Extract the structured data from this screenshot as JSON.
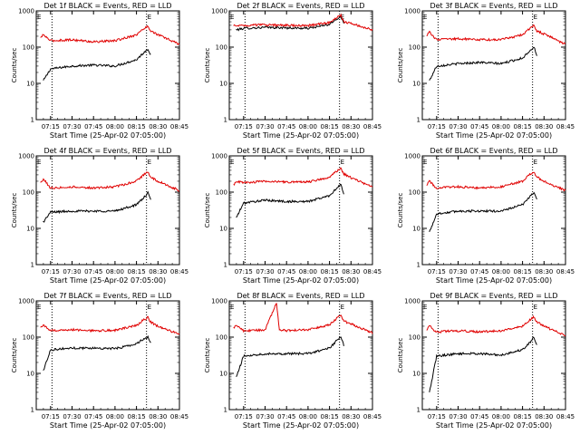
{
  "figure": {
    "colors": {
      "events": "#000000",
      "lld": "#e00000",
      "axes": "#000000",
      "background": "#ffffff"
    }
  },
  "chart_data": [
    {
      "type": "line",
      "title": "Det 1f BLACK = Events, RED = LLD",
      "xlabel": "Start Time (25-Apr-02 07:05:00)",
      "ylabel": "Counts/sec",
      "y_scale": "log",
      "ylim": [
        1,
        1000
      ],
      "xlim": [
        "07:05",
        "08:45"
      ],
      "x_tick_labels": [
        "07:15",
        "07:30",
        "07:45",
        "08:00",
        "08:15",
        "08:30",
        "08:45"
      ],
      "y_tick_labels": [
        "1",
        "10",
        "100",
        "1000"
      ],
      "markers": {
        "dotted_lines_at": [
          "07:16",
          "08:22"
        ],
        "labels": [
          "E",
          "E"
        ]
      },
      "x": [
        "07:08",
        "07:10",
        "07:15",
        "07:30",
        "07:45",
        "08:00",
        "08:15",
        "08:20",
        "08:23",
        "08:25",
        "08:30",
        "08:45"
      ],
      "series": [
        {
          "name": "BLACK = Events",
          "values": [
            null,
            12,
            25,
            30,
            32,
            30,
            45,
            70,
            90,
            60,
            null,
            null
          ]
        },
        {
          "name": "RED = LLD",
          "values": [
            180,
            220,
            150,
            160,
            140,
            150,
            220,
            320,
            380,
            280,
            220,
            120
          ]
        }
      ]
    },
    {
      "type": "line",
      "title": "Det 2f BLACK = Events, RED = LLD",
      "xlabel": "Start Time (25-Apr-02 07:05:00)",
      "ylabel": "Counts/sec",
      "y_scale": "log",
      "ylim": [
        1,
        1000
      ],
      "xlim": [
        "07:05",
        "08:45"
      ],
      "x_tick_labels": [
        "07:15",
        "07:30",
        "07:45",
        "08:00",
        "08:15",
        "08:30",
        "08:45"
      ],
      "y_tick_labels": [
        "1",
        "10",
        "100",
        "1000"
      ],
      "markers": {
        "dotted_lines_at": [
          "07:16",
          "08:22"
        ],
        "labels": [
          "E",
          "E"
        ]
      },
      "x": [
        "07:08",
        "07:10",
        "07:15",
        "07:30",
        "07:45",
        "08:00",
        "08:15",
        "08:20",
        "08:23",
        "08:25",
        "08:30",
        "08:45"
      ],
      "series": [
        {
          "name": "BLACK = Events",
          "values": [
            null,
            300,
            330,
            350,
            340,
            330,
            420,
            600,
            700,
            450,
            null,
            null
          ]
        },
        {
          "name": "RED = LLD",
          "values": [
            380,
            400,
            400,
            410,
            400,
            390,
            480,
            650,
            750,
            500,
            450,
            300
          ]
        }
      ]
    },
    {
      "type": "line",
      "title": "Det 3f BLACK = Events, RED = LLD",
      "xlabel": "Start Time (25-Apr-02 07:05:00)",
      "ylabel": "Counts/sec",
      "y_scale": "log",
      "ylim": [
        1,
        1000
      ],
      "xlim": [
        "07:05",
        "08:45"
      ],
      "x_tick_labels": [
        "07:15",
        "07:30",
        "07:45",
        "08:00",
        "08:15",
        "08:30",
        "08:45"
      ],
      "y_tick_labels": [
        "1",
        "10",
        "100",
        "1000"
      ],
      "markers": {
        "dotted_lines_at": [
          "07:16",
          "08:22"
        ],
        "labels": [
          "E",
          "E"
        ]
      },
      "x": [
        "07:08",
        "07:10",
        "07:15",
        "07:30",
        "07:45",
        "08:00",
        "08:15",
        "08:20",
        "08:23",
        "08:25",
        "08:30",
        "08:45"
      ],
      "series": [
        {
          "name": "BLACK = Events",
          "values": [
            null,
            12,
            30,
            35,
            38,
            35,
            50,
            80,
            100,
            60,
            null,
            null
          ]
        },
        {
          "name": "RED = LLD",
          "values": [
            200,
            260,
            160,
            170,
            160,
            160,
            220,
            330,
            400,
            280,
            230,
            120
          ]
        }
      ]
    },
    {
      "type": "line",
      "title": "Det 4f BLACK = Events, RED = LLD",
      "xlabel": "Start Time (25-Apr-02 07:05:00)",
      "ylabel": "Counts/sec",
      "y_scale": "log",
      "ylim": [
        1,
        1000
      ],
      "xlim": [
        "07:05",
        "08:45"
      ],
      "x_tick_labels": [
        "07:15",
        "07:30",
        "07:45",
        "08:00",
        "08:15",
        "08:30",
        "08:45"
      ],
      "y_tick_labels": [
        "1",
        "10",
        "100",
        "1000"
      ],
      "markers": {
        "dotted_lines_at": [
          "07:16",
          "08:22"
        ],
        "labels": [
          "E",
          "E"
        ]
      },
      "x": [
        "07:08",
        "07:10",
        "07:15",
        "07:30",
        "07:45",
        "08:00",
        "08:15",
        "08:20",
        "08:23",
        "08:25",
        "08:30",
        "08:45"
      ],
      "series": [
        {
          "name": "BLACK = Events",
          "values": [
            null,
            15,
            28,
            30,
            30,
            30,
            45,
            70,
            95,
            60,
            null,
            null
          ]
        },
        {
          "name": "RED = LLD",
          "values": [
            180,
            230,
            130,
            140,
            130,
            140,
            200,
            300,
            370,
            260,
            200,
            110
          ]
        }
      ]
    },
    {
      "type": "line",
      "title": "Det 5f BLACK = Events, RED = LLD",
      "xlabel": "Start Time (25-Apr-02 07:05:00)",
      "ylabel": "Counts/sec",
      "y_scale": "log",
      "ylim": [
        1,
        1000
      ],
      "xlim": [
        "07:05",
        "08:45"
      ],
      "x_tick_labels": [
        "07:15",
        "07:30",
        "07:45",
        "08:00",
        "08:15",
        "08:30",
        "08:45"
      ],
      "y_tick_labels": [
        "1",
        "10",
        "100",
        "1000"
      ],
      "markers": {
        "dotted_lines_at": [
          "07:16",
          "08:22"
        ],
        "labels": [
          "E",
          "E"
        ]
      },
      "x": [
        "07:08",
        "07:10",
        "07:15",
        "07:30",
        "07:45",
        "08:00",
        "08:15",
        "08:20",
        "08:23",
        "08:25",
        "08:30",
        "08:45"
      ],
      "series": [
        {
          "name": "BLACK = Events",
          "values": [
            null,
            20,
            50,
            60,
            55,
            55,
            80,
            130,
            160,
            90,
            null,
            null
          ]
        },
        {
          "name": "RED = LLD",
          "values": [
            160,
            200,
            180,
            200,
            190,
            190,
            260,
            380,
            450,
            320,
            250,
            140
          ]
        }
      ]
    },
    {
      "type": "line",
      "title": "Det 6f BLACK = Events, RED = LLD",
      "xlabel": "Start Time (25-Apr-02 07:05:00)",
      "ylabel": "Counts/sec",
      "y_scale": "log",
      "ylim": [
        1,
        1000
      ],
      "xlim": [
        "07:05",
        "08:45"
      ],
      "x_tick_labels": [
        "07:15",
        "07:30",
        "07:45",
        "08:00",
        "08:15",
        "08:30",
        "08:45"
      ],
      "y_tick_labels": [
        "1",
        "10",
        "100",
        "1000"
      ],
      "markers": {
        "dotted_lines_at": [
          "07:16",
          "08:22"
        ],
        "labels": [
          "E",
          "E"
        ]
      },
      "x": [
        "07:08",
        "07:10",
        "07:15",
        "07:30",
        "07:45",
        "08:00",
        "08:15",
        "08:20",
        "08:23",
        "08:25",
        "08:30",
        "08:45"
      ],
      "series": [
        {
          "name": "BLACK = Events",
          "values": [
            null,
            8,
            25,
            30,
            30,
            30,
            45,
            75,
            100,
            60,
            null,
            null
          ]
        },
        {
          "name": "RED = LLD",
          "values": [
            150,
            200,
            130,
            140,
            130,
            140,
            200,
            300,
            360,
            260,
            200,
            110
          ]
        }
      ]
    },
    {
      "type": "line",
      "title": "Det 7f BLACK = Events, RED = LLD",
      "xlabel": "Start Time (25-Apr-02 07:05:00)",
      "ylabel": "Counts/sec",
      "y_scale": "log",
      "ylim": [
        1,
        1000
      ],
      "xlim": [
        "07:05",
        "08:45"
      ],
      "x_tick_labels": [
        "07:15",
        "07:30",
        "07:45",
        "08:00",
        "08:15",
        "08:30",
        "08:45"
      ],
      "y_tick_labels": [
        "1",
        "10",
        "100",
        "1000"
      ],
      "markers": {
        "dotted_lines_at": [
          "07:16",
          "08:22"
        ],
        "labels": [
          "E",
          "E"
        ]
      },
      "x": [
        "07:08",
        "07:10",
        "07:15",
        "07:30",
        "07:45",
        "08:00",
        "08:15",
        "08:20",
        "08:23",
        "08:25",
        "08:30",
        "08:45"
      ],
      "series": [
        {
          "name": "BLACK = Events",
          "values": [
            null,
            12,
            45,
            50,
            50,
            48,
            65,
            90,
            100,
            70,
            null,
            null
          ]
        },
        {
          "name": "RED = LLD",
          "values": [
            180,
            220,
            150,
            160,
            150,
            155,
            210,
            300,
            350,
            260,
            200,
            120
          ]
        }
      ]
    },
    {
      "type": "line",
      "title": "Det 8f BLACK = Events, RED = LLD",
      "xlabel": "Start Time (25-Apr-02 07:05:00)",
      "ylabel": "Counts/sec",
      "y_scale": "log",
      "ylim": [
        1,
        1000
      ],
      "xlim": [
        "07:05",
        "08:45"
      ],
      "x_tick_labels": [
        "07:15",
        "07:30",
        "07:45",
        "08:00",
        "08:15",
        "08:30",
        "08:45"
      ],
      "y_tick_labels": [
        "1",
        "10",
        "100",
        "1000"
      ],
      "markers": {
        "dotted_lines_at": [
          "07:16",
          "08:22"
        ],
        "labels": [
          "E",
          "E"
        ]
      },
      "x": [
        "07:08",
        "07:10",
        "07:15",
        "07:30",
        "07:38",
        "07:40",
        "07:45",
        "08:00",
        "08:15",
        "08:20",
        "08:23",
        "08:25",
        "08:30",
        "08:45"
      ],
      "series": [
        {
          "name": "BLACK = Events",
          "values": [
            null,
            8,
            30,
            35,
            35,
            35,
            35,
            35,
            50,
            80,
            100,
            60,
            null,
            null
          ]
        },
        {
          "name": "RED = LLD",
          "values": [
            180,
            220,
            150,
            160,
            900,
            160,
            150,
            160,
            220,
            330,
            400,
            280,
            230,
            130
          ]
        }
      ]
    },
    {
      "type": "line",
      "title": "Det 9f BLACK = Events, RED = LLD",
      "xlabel": "Start Time (25-Apr-02 07:05:00)",
      "ylabel": "Counts/sec",
      "y_scale": "log",
      "ylim": [
        1,
        1000
      ],
      "xlim": [
        "07:05",
        "08:45"
      ],
      "x_tick_labels": [
        "07:15",
        "07:30",
        "07:45",
        "08:00",
        "08:15",
        "08:30",
        "08:45"
      ],
      "y_tick_labels": [
        "1",
        "10",
        "100",
        "1000"
      ],
      "markers": {
        "dotted_lines_at": [
          "07:16",
          "08:22"
        ],
        "labels": [
          "E",
          "E"
        ]
      },
      "x": [
        "07:08",
        "07:10",
        "07:15",
        "07:30",
        "07:45",
        "08:00",
        "08:15",
        "08:20",
        "08:23",
        "08:25",
        "08:30",
        "08:45"
      ],
      "series": [
        {
          "name": "BLACK = Events",
          "values": [
            null,
            3,
            30,
            35,
            35,
            32,
            45,
            70,
            100,
            60,
            null,
            null
          ]
        },
        {
          "name": "RED = LLD",
          "values": [
            150,
            200,
            140,
            150,
            140,
            150,
            200,
            300,
            360,
            260,
            200,
            110
          ]
        }
      ]
    }
  ]
}
